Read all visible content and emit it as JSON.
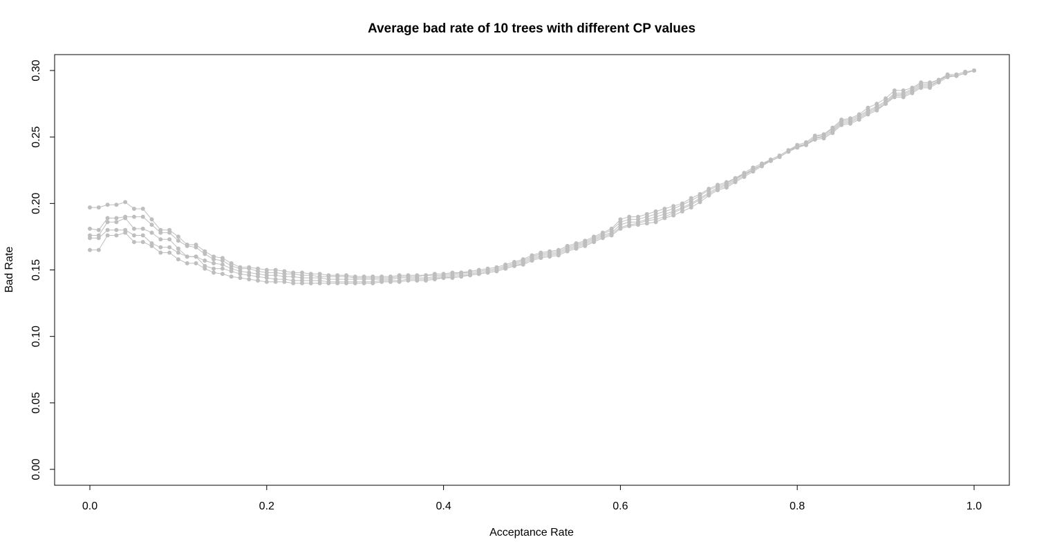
{
  "chart_data": {
    "type": "line",
    "title": "Average bad rate of 10 trees with different CP values",
    "xlabel": "Acceptance Rate",
    "ylabel": "Bad Rate",
    "xlim": [
      0,
      1
    ],
    "ylim": [
      0,
      0.3
    ],
    "x_ticks": [
      0.0,
      0.2,
      0.4,
      0.6,
      0.8,
      1.0
    ],
    "x_tick_labels": [
      "0.0",
      "0.2",
      "0.4",
      "0.6",
      "0.8",
      "1.0"
    ],
    "y_ticks": [
      0.0,
      0.05,
      0.1,
      0.15,
      0.2,
      0.25,
      0.3
    ],
    "y_tick_labels": [
      "0.00",
      "0.05",
      "0.10",
      "0.15",
      "0.20",
      "0.25",
      "0.30"
    ],
    "grid": false,
    "legend": "none",
    "series_color": "#bebebe",
    "x": [
      0.0,
      0.01,
      0.02,
      0.03,
      0.04,
      0.05,
      0.06,
      0.07,
      0.08,
      0.09,
      0.1,
      0.11,
      0.12,
      0.13,
      0.14,
      0.15,
      0.16,
      0.17,
      0.18,
      0.19,
      0.2,
      0.21,
      0.22,
      0.23,
      0.24,
      0.25,
      0.26,
      0.27,
      0.28,
      0.29,
      0.3,
      0.31,
      0.32,
      0.33,
      0.34,
      0.35,
      0.36,
      0.37,
      0.38,
      0.39,
      0.4,
      0.41,
      0.42,
      0.43,
      0.44,
      0.45,
      0.46,
      0.47,
      0.48,
      0.49,
      0.5,
      0.51,
      0.52,
      0.53,
      0.54,
      0.55,
      0.56,
      0.57,
      0.58,
      0.59,
      0.6,
      0.61,
      0.62,
      0.63,
      0.64,
      0.65,
      0.66,
      0.67,
      0.68,
      0.69,
      0.7,
      0.71,
      0.72,
      0.73,
      0.74,
      0.75,
      0.76,
      0.77,
      0.78,
      0.79,
      0.8,
      0.81,
      0.82,
      0.83,
      0.84,
      0.85,
      0.86,
      0.87,
      0.88,
      0.89,
      0.9,
      0.91,
      0.92,
      0.93,
      0.94,
      0.95,
      0.96,
      0.97,
      0.98,
      0.99,
      1.0
    ],
    "series": [
      {
        "values": [
          0.197,
          0.197,
          0.199,
          0.199,
          0.201,
          0.196,
          0.196,
          0.188,
          0.18,
          0.18,
          0.175,
          0.169,
          0.169,
          0.164,
          0.16,
          0.159,
          0.155,
          0.152,
          0.152,
          0.151,
          0.15,
          0.15,
          0.149,
          0.148,
          0.148,
          0.147,
          0.147,
          0.146,
          0.146,
          0.146,
          0.145,
          0.145,
          0.145,
          0.145,
          0.145,
          0.146,
          0.146,
          0.146,
          0.146,
          0.147,
          0.147,
          0.148,
          0.148,
          0.149,
          0.15,
          0.151,
          0.152,
          0.154,
          0.156,
          0.158,
          0.161,
          0.163,
          0.164,
          0.165,
          0.168,
          0.17,
          0.172,
          0.175,
          0.178,
          0.181,
          0.188,
          0.19,
          0.19,
          0.192,
          0.194,
          0.196,
          0.198,
          0.2,
          0.204,
          0.207,
          0.211,
          0.214,
          0.216,
          0.219,
          0.223,
          0.227,
          0.23,
          0.233,
          0.236,
          0.24,
          0.244,
          0.246,
          0.251,
          0.252,
          0.257,
          0.263,
          0.264,
          0.267,
          0.272,
          0.275,
          0.279,
          0.285,
          0.285,
          0.287,
          0.291,
          0.291,
          0.293,
          0.297,
          0.297,
          0.299,
          0.3
        ]
      },
      {
        "values": [
          0.181,
          0.18,
          0.189,
          0.189,
          0.19,
          0.19,
          0.19,
          0.184,
          0.178,
          0.178,
          0.172,
          0.168,
          0.167,
          0.162,
          0.158,
          0.157,
          0.153,
          0.151,
          0.151,
          0.149,
          0.148,
          0.148,
          0.147,
          0.147,
          0.146,
          0.146,
          0.145,
          0.145,
          0.145,
          0.145,
          0.144,
          0.144,
          0.144,
          0.144,
          0.144,
          0.145,
          0.145,
          0.145,
          0.146,
          0.146,
          0.146,
          0.147,
          0.148,
          0.148,
          0.149,
          0.15,
          0.151,
          0.153,
          0.155,
          0.157,
          0.16,
          0.162,
          0.163,
          0.164,
          0.167,
          0.169,
          0.171,
          0.174,
          0.177,
          0.18,
          0.186,
          0.188,
          0.188,
          0.19,
          0.192,
          0.194,
          0.196,
          0.199,
          0.202,
          0.206,
          0.21,
          0.213,
          0.215,
          0.219,
          0.222,
          0.226,
          0.229,
          0.233,
          0.236,
          0.24,
          0.243,
          0.245,
          0.25,
          0.252,
          0.256,
          0.262,
          0.263,
          0.266,
          0.27,
          0.273,
          0.277,
          0.283,
          0.283,
          0.286,
          0.29,
          0.29,
          0.293,
          0.296,
          0.296,
          0.298,
          0.3
        ]
      },
      {
        "values": [
          0.176,
          0.176,
          0.186,
          0.186,
          0.189,
          0.181,
          0.181,
          0.178,
          0.173,
          0.173,
          0.166,
          0.16,
          0.16,
          0.157,
          0.155,
          0.154,
          0.151,
          0.149,
          0.148,
          0.147,
          0.146,
          0.146,
          0.145,
          0.145,
          0.144,
          0.144,
          0.144,
          0.143,
          0.143,
          0.143,
          0.143,
          0.143,
          0.143,
          0.143,
          0.143,
          0.144,
          0.144,
          0.144,
          0.144,
          0.145,
          0.145,
          0.146,
          0.147,
          0.147,
          0.148,
          0.149,
          0.15,
          0.152,
          0.154,
          0.156,
          0.159,
          0.161,
          0.162,
          0.163,
          0.166,
          0.168,
          0.17,
          0.173,
          0.176,
          0.178,
          0.184,
          0.186,
          0.186,
          0.188,
          0.19,
          0.192,
          0.194,
          0.197,
          0.2,
          0.204,
          0.208,
          0.212,
          0.214,
          0.218,
          0.222,
          0.225,
          0.229,
          0.232,
          0.235,
          0.239,
          0.243,
          0.244,
          0.249,
          0.251,
          0.255,
          0.261,
          0.262,
          0.265,
          0.269,
          0.272,
          0.276,
          0.282,
          0.282,
          0.285,
          0.289,
          0.289,
          0.292,
          0.296,
          0.296,
          0.298,
          0.3
        ]
      },
      {
        "values": [
          0.174,
          0.174,
          0.18,
          0.18,
          0.18,
          0.176,
          0.176,
          0.17,
          0.167,
          0.167,
          0.163,
          0.16,
          0.16,
          0.153,
          0.151,
          0.151,
          0.149,
          0.147,
          0.146,
          0.145,
          0.144,
          0.143,
          0.143,
          0.142,
          0.142,
          0.142,
          0.142,
          0.141,
          0.141,
          0.141,
          0.141,
          0.141,
          0.141,
          0.142,
          0.142,
          0.142,
          0.143,
          0.143,
          0.143,
          0.144,
          0.144,
          0.145,
          0.146,
          0.146,
          0.147,
          0.148,
          0.149,
          0.151,
          0.153,
          0.155,
          0.158,
          0.16,
          0.161,
          0.162,
          0.165,
          0.167,
          0.169,
          0.172,
          0.175,
          0.177,
          0.182,
          0.184,
          0.185,
          0.187,
          0.188,
          0.19,
          0.193,
          0.196,
          0.199,
          0.203,
          0.207,
          0.211,
          0.213,
          0.217,
          0.221,
          0.225,
          0.229,
          0.232,
          0.235,
          0.239,
          0.242,
          0.244,
          0.249,
          0.25,
          0.254,
          0.26,
          0.261,
          0.264,
          0.268,
          0.271,
          0.275,
          0.281,
          0.281,
          0.284,
          0.288,
          0.288,
          0.292,
          0.296,
          0.296,
          0.298,
          0.3
        ]
      },
      {
        "values": [
          0.165,
          0.165,
          0.176,
          0.176,
          0.178,
          0.171,
          0.171,
          0.168,
          0.163,
          0.163,
          0.158,
          0.155,
          0.155,
          0.151,
          0.148,
          0.147,
          0.145,
          0.144,
          0.143,
          0.142,
          0.141,
          0.141,
          0.141,
          0.14,
          0.14,
          0.14,
          0.14,
          0.14,
          0.14,
          0.14,
          0.14,
          0.14,
          0.14,
          0.141,
          0.141,
          0.141,
          0.142,
          0.142,
          0.142,
          0.143,
          0.144,
          0.144,
          0.145,
          0.146,
          0.147,
          0.148,
          0.149,
          0.151,
          0.153,
          0.154,
          0.157,
          0.159,
          0.16,
          0.161,
          0.164,
          0.166,
          0.168,
          0.171,
          0.174,
          0.176,
          0.181,
          0.183,
          0.184,
          0.185,
          0.186,
          0.189,
          0.191,
          0.194,
          0.197,
          0.201,
          0.206,
          0.21,
          0.212,
          0.216,
          0.22,
          0.224,
          0.228,
          0.232,
          0.235,
          0.239,
          0.242,
          0.244,
          0.248,
          0.249,
          0.253,
          0.259,
          0.26,
          0.263,
          0.267,
          0.27,
          0.275,
          0.28,
          0.28,
          0.283,
          0.287,
          0.287,
          0.291,
          0.295,
          0.296,
          0.298,
          0.3
        ]
      }
    ]
  }
}
